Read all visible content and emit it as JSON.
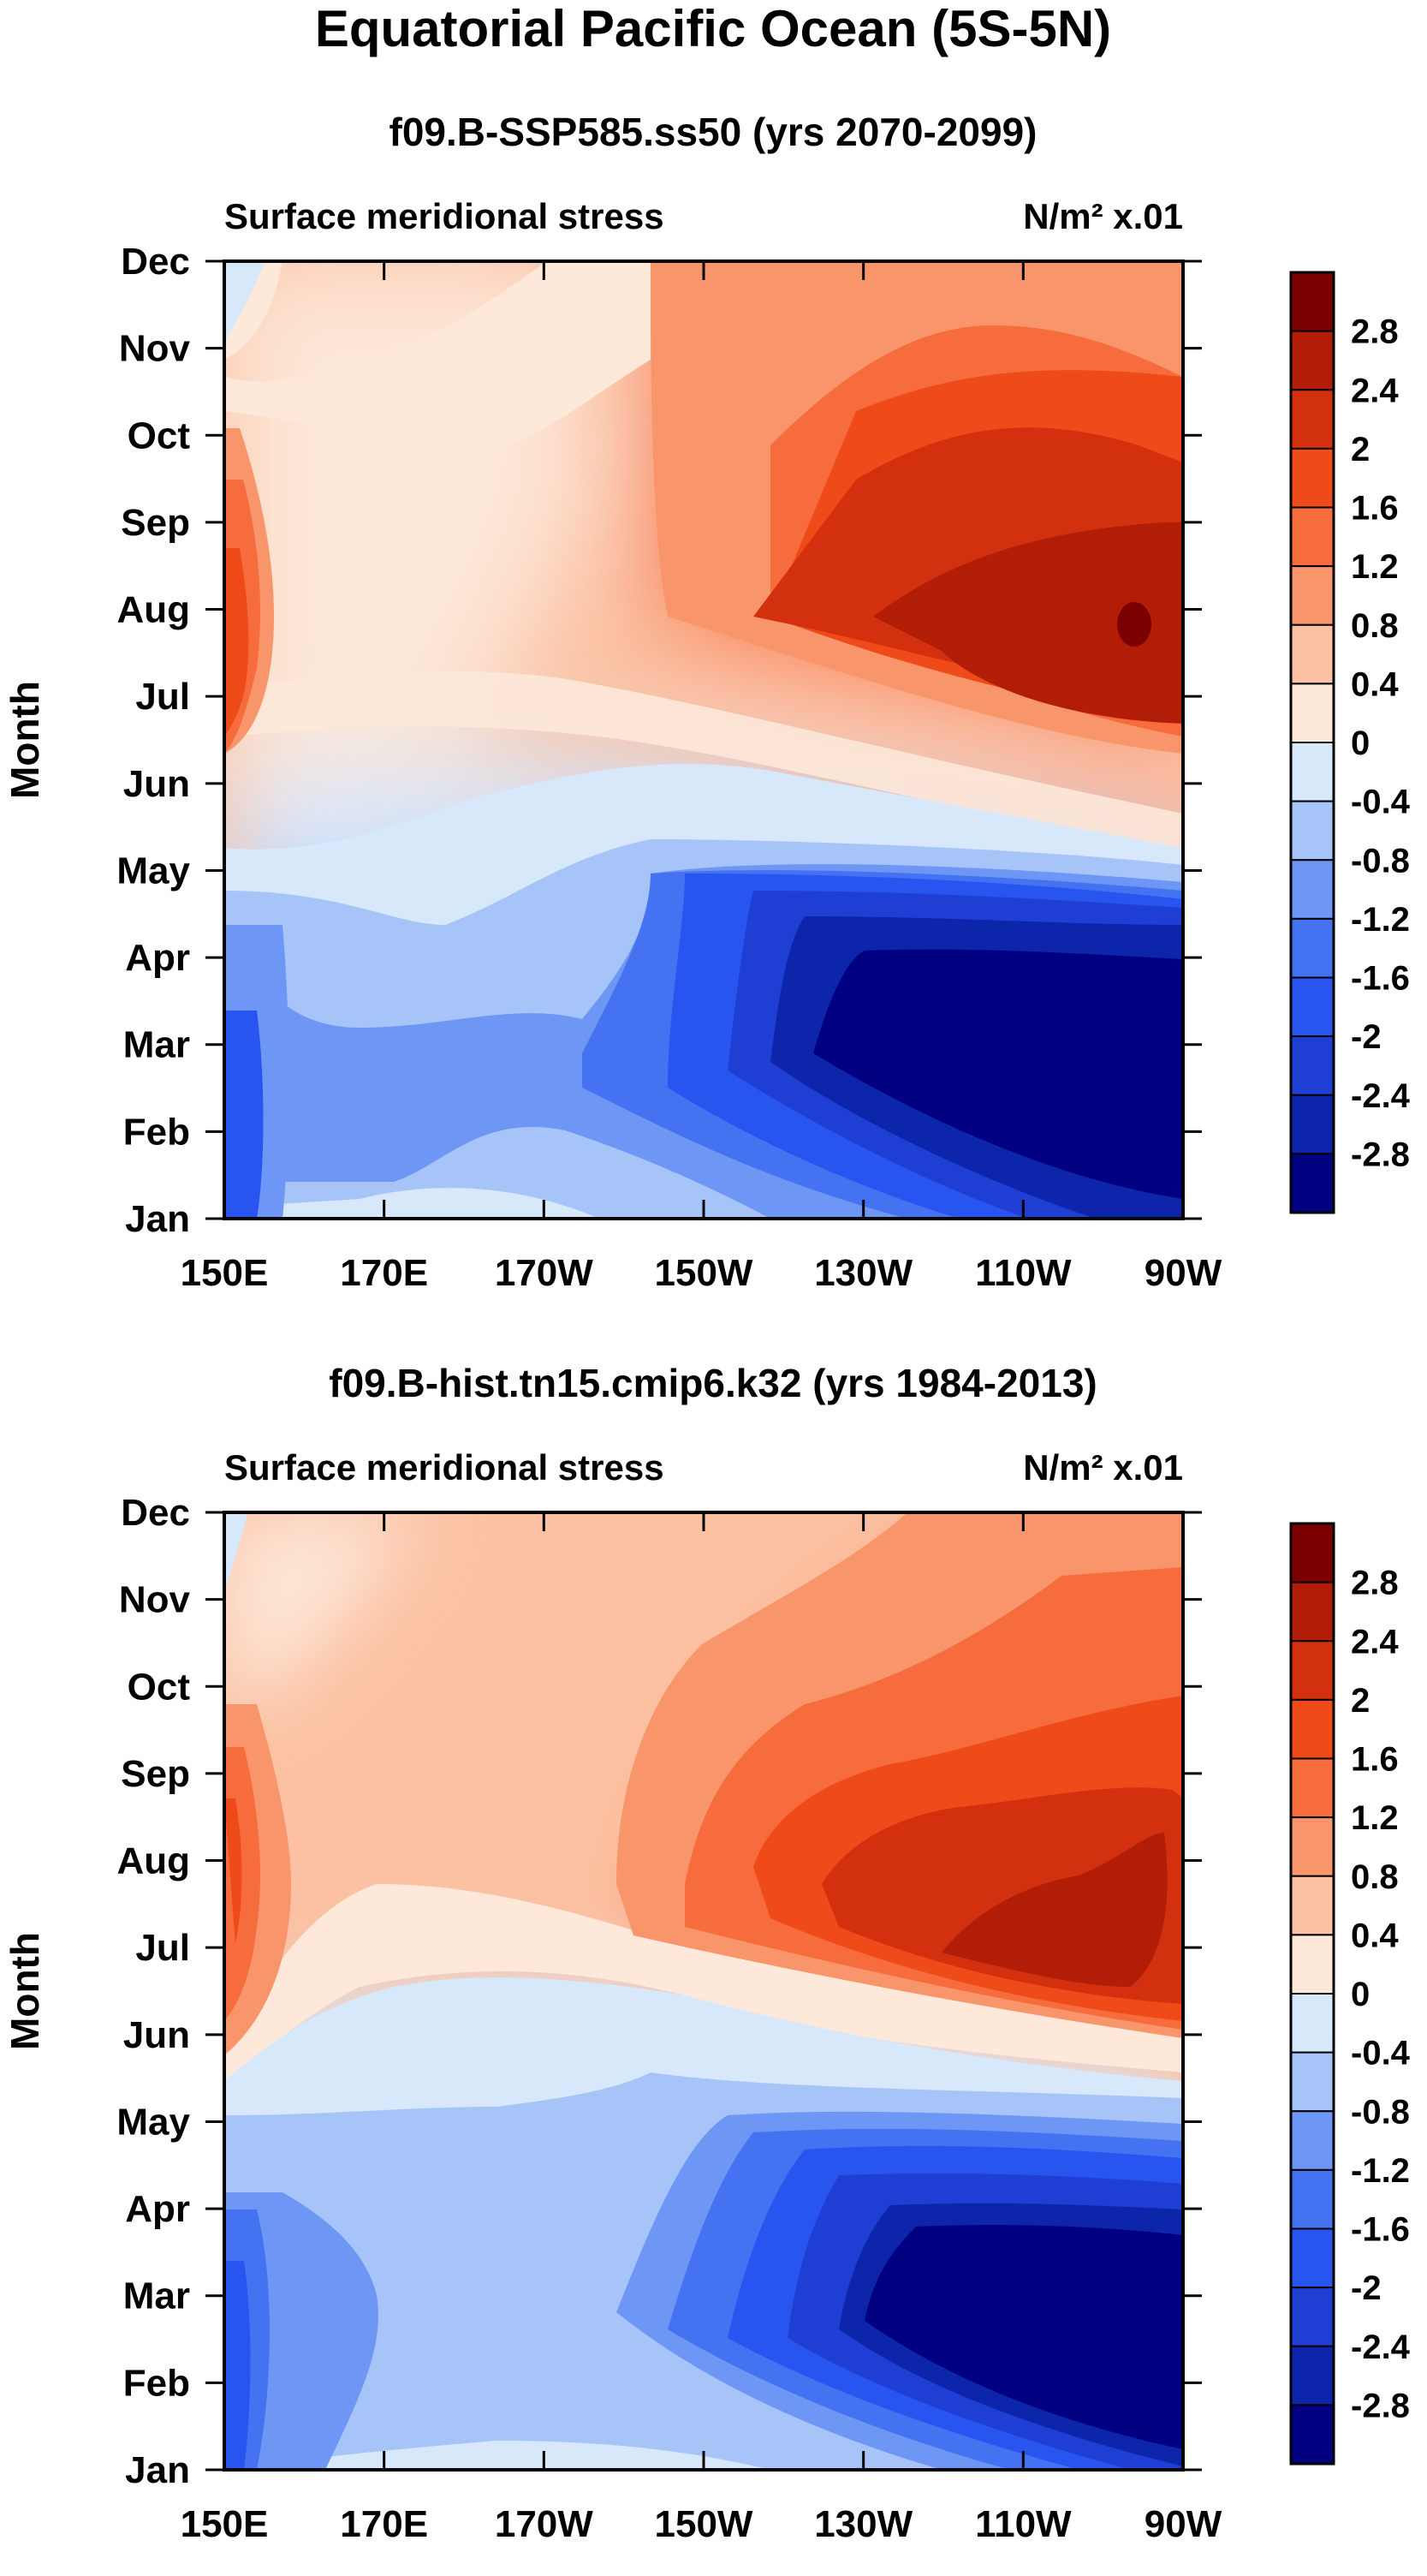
{
  "title": "Equatorial Pacific Ocean (5S-5N)",
  "chart_data": [
    {
      "type": "heatmap",
      "case_title": "f09.B-SSP585.ss50 (yrs 2070-2099)",
      "left_string": "Surface meridional stress",
      "right_string": "N/m² x.01",
      "ylabel": "Month",
      "x_ticks": [
        "150E",
        "170E",
        "170W",
        "150W",
        "130W",
        "110W",
        "90W"
      ],
      "x_values": [
        150,
        170,
        190,
        210,
        230,
        250,
        270
      ],
      "xlim": [
        150,
        270
      ],
      "y_ticks": [
        "Jan",
        "Feb",
        "Mar",
        "Apr",
        "May",
        "Jun",
        "Jul",
        "Aug",
        "Sep",
        "Oct",
        "Nov",
        "Dec"
      ],
      "colorbar_labels": [
        "2.8",
        "2.4",
        "2",
        "1.6",
        "1.2",
        "0.8",
        "0.4",
        "0",
        "-0.4",
        "-0.8",
        "-1.2",
        "-1.6",
        "-2",
        "-2.4",
        "-2.8"
      ],
      "contour_levels": [
        -2.8,
        -2.4,
        -2.0,
        -1.6,
        -1.2,
        -0.8,
        -0.4,
        0,
        0.4,
        0.8,
        1.2,
        1.6,
        2.0,
        2.4,
        2.8
      ],
      "features": [
        {
          "lon": 150,
          "month": "Jul",
          "value": 2.0
        },
        {
          "lon": 150,
          "month": "Mar",
          "value": -1.8
        },
        {
          "lon": 210,
          "month": "Oct",
          "value": 0.9
        },
        {
          "lon": 250,
          "month": "Aug",
          "value": 2.5
        },
        {
          "lon": 265,
          "month": "Aug",
          "value": 3.0
        },
        {
          "lon": 250,
          "month": "Mar",
          "value": -3.2
        },
        {
          "lon": 200,
          "month": "Mar",
          "value": -1.0
        }
      ]
    },
    {
      "type": "heatmap",
      "case_title": "f09.B-hist.tn15.cmip6.k32 (yrs 1984-2013)",
      "left_string": "Surface meridional stress",
      "right_string": "N/m² x.01",
      "ylabel": "Month",
      "x_ticks": [
        "150E",
        "170E",
        "170W",
        "150W",
        "130W",
        "110W",
        "90W"
      ],
      "x_values": [
        150,
        170,
        190,
        210,
        230,
        250,
        270
      ],
      "xlim": [
        150,
        270
      ],
      "y_ticks": [
        "Jan",
        "Feb",
        "Mar",
        "Apr",
        "May",
        "Jun",
        "Jul",
        "Aug",
        "Sep",
        "Oct",
        "Nov",
        "Dec"
      ],
      "colorbar_labels": [
        "2.8",
        "2.4",
        "2",
        "1.6",
        "1.2",
        "0.8",
        "0.4",
        "0",
        "-0.4",
        "-0.8",
        "-1.2",
        "-1.6",
        "-2",
        "-2.4",
        "-2.8"
      ],
      "contour_levels": [
        -2.8,
        -2.4,
        -2.0,
        -1.6,
        -1.2,
        -0.8,
        -0.4,
        0,
        0.4,
        0.8,
        1.2,
        1.6,
        2.0,
        2.4,
        2.8
      ],
      "features": [
        {
          "lon": 151,
          "month": "Aug",
          "value": 1.7
        },
        {
          "lon": 150,
          "month": "Mar",
          "value": -1.7
        },
        {
          "lon": 220,
          "month": "Oct",
          "value": 0.9
        },
        {
          "lon": 255,
          "month": "Jul",
          "value": 2.2
        },
        {
          "lon": 250,
          "month": "Mar",
          "value": -3.1
        },
        {
          "lon": 180,
          "month": "Mar",
          "value": -1.0
        }
      ]
    }
  ],
  "colors": {
    "palette": [
      "#000080",
      "#0c25aa",
      "#1f3fd4",
      "#2855f0",
      "#4472f0",
      "#6e96f4",
      "#a7c4f9",
      "#d8e8fb",
      "#fde8d9",
      "#fbc1a2",
      "#f9956b",
      "#f76c3c",
      "#ef4a1a",
      "#d3300f",
      "#b21d07",
      "#7b0000"
    ]
  }
}
